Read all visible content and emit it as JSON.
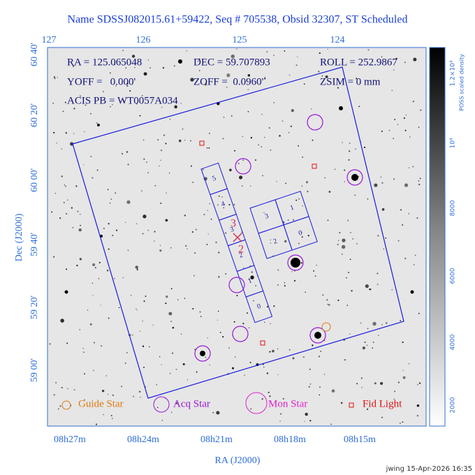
{
  "title": "Name SDSSJ082015.61+59422, Seq # 705538, Obsid 32307, ST Scheduled",
  "info": {
    "ra": "RA = 125.065048",
    "dec": "DEC = 59.707893",
    "roll": "ROLL = 252.9867",
    "yoff": "YOFF =   0.000'",
    "zoff": "ZOFF =  0.0960'",
    "zsim": "ZSIM = 0 mm",
    "acis": "ACIS PB = WT0057A034"
  },
  "top_axis": [
    "127",
    "126",
    "125",
    "124"
  ],
  "left_axis": [
    "60 40'",
    "60 20'",
    "60 00'",
    "59 40'",
    "59 20'",
    "59 00'"
  ],
  "bottom_axis": [
    "08h27m",
    "08h24m",
    "08h21m",
    "08h18m",
    "08h15m"
  ],
  "x_label": "RA (J2000)",
  "y_label": "Dec (J2000)",
  "chips": {
    "s_array": [
      "5",
      "4",
      "3",
      "2",
      "1",
      "0"
    ],
    "i_array": [
      "3",
      "1",
      "2",
      "0"
    ]
  },
  "aimpoint": [
    "3",
    "2"
  ],
  "legend": [
    "Guide Star",
    "Acq Star",
    "Mon Star",
    "Fid Light"
  ],
  "colorbar": {
    "title": "POSS scaled density",
    "labels": [
      "2000",
      "4000",
      "6000",
      "8000",
      "10⁴",
      "1.2×10⁴"
    ]
  },
  "footer": "jwing 15-Apr-2026 16:35"
}
